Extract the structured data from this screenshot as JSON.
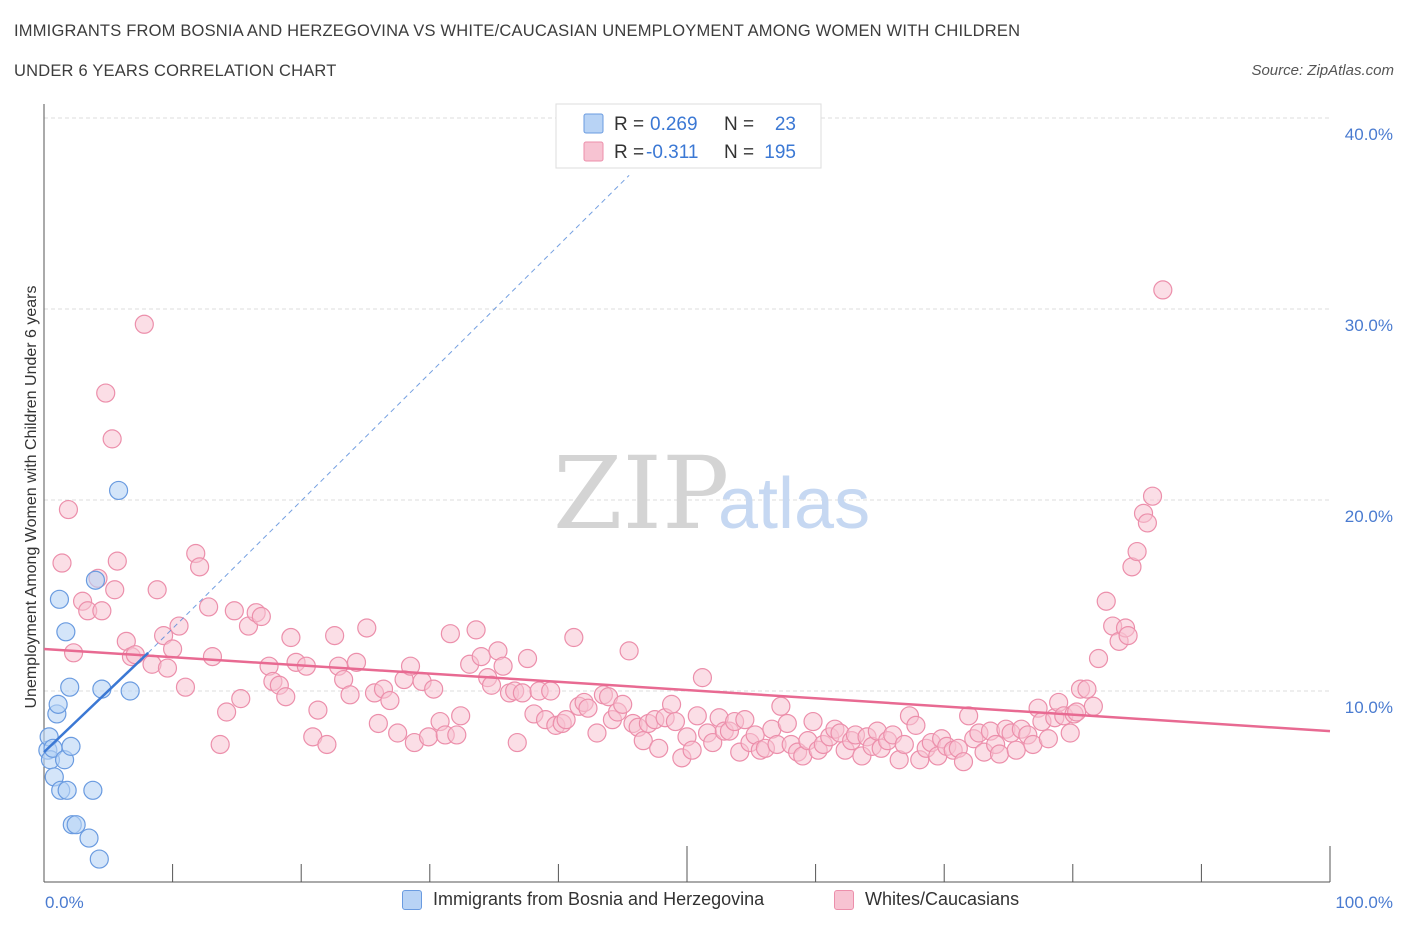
{
  "header": {
    "title_line1": "IMMIGRANTS FROM BOSNIA AND HERZEGOVINA VS WHITE/CAUCASIAN UNEMPLOYMENT AMONG WOMEN WITH CHILDREN",
    "title_line2": "UNDER 6 YEARS CORRELATION CHART",
    "source": "Source: ZipAtlas.com"
  },
  "watermark": {
    "part1": "ZIP",
    "part2": "atlas"
  },
  "stats": {
    "r_label": "R =",
    "n_label": "N =",
    "rows": [
      {
        "series": "Immigrants from Bosnia and Herzegovina",
        "r": "0.269",
        "n": "23"
      },
      {
        "series": "Whites/Caucasians",
        "r": "-0.311",
        "n": "195"
      }
    ]
  },
  "legend": {
    "items": [
      {
        "label": "Immigrants from Bosnia and Herzegovina"
      },
      {
        "label": "Whites/Caucasians"
      }
    ]
  },
  "colors": {
    "blue_fill": "#b8d3f5",
    "blue_stroke": "#6a9be0",
    "blue_line": "#3b78d4",
    "pink_fill": "#f7c3d2",
    "pink_stroke": "#ec8fab",
    "pink_line": "#e86a92",
    "grid": "#dddddd",
    "tick_text": "#4a7bd0"
  },
  "chart_data": {
    "type": "scatter",
    "title": "IMMIGRANTS FROM BOSNIA AND HERZEGOVINA VS WHITE/CAUCASIAN UNEMPLOYMENT AMONG WOMEN WITH CHILDREN UNDER 6 YEARS CORRELATION CHART",
    "xlabel": "",
    "ylabel": "Unemployment Among Women with Children Under 6 years",
    "xlim": [
      0,
      100
    ],
    "ylim": [
      0,
      40
    ],
    "x_tick_labels": [
      "0.0%",
      "100.0%"
    ],
    "y_ticks": [
      10,
      20,
      30,
      40
    ],
    "y_tick_labels": [
      "10.0%",
      "20.0%",
      "30.0%",
      "40.0%"
    ],
    "grid": true,
    "legend_position": "bottom",
    "series": [
      {
        "name": "Immigrants from Bosnia and Herzegovina",
        "color": "#b8d3f5",
        "trend": {
          "x": [
            0,
            8.1
          ],
          "y": [
            6.8,
            12.0
          ],
          "dashed_extension_to": [
            45.5,
            37.0
          ]
        },
        "points": [
          [
            0.3,
            6.9
          ],
          [
            0.4,
            7.6
          ],
          [
            0.5,
            6.4
          ],
          [
            0.7,
            7.0
          ],
          [
            0.8,
            5.5
          ],
          [
            1.0,
            8.8
          ],
          [
            1.1,
            9.3
          ],
          [
            1.2,
            14.8
          ],
          [
            1.3,
            4.8
          ],
          [
            1.6,
            6.4
          ],
          [
            1.7,
            13.1
          ],
          [
            1.8,
            4.8
          ],
          [
            2.0,
            10.2
          ],
          [
            2.1,
            7.1
          ],
          [
            2.2,
            3.0
          ],
          [
            2.5,
            3.0
          ],
          [
            3.5,
            2.3
          ],
          [
            3.8,
            4.8
          ],
          [
            4.0,
            15.8
          ],
          [
            4.3,
            1.2
          ],
          [
            4.5,
            10.1
          ],
          [
            5.8,
            20.5
          ],
          [
            6.7,
            10.0
          ]
        ]
      },
      {
        "name": "Whites/Caucasians",
        "color": "#f7c3d2",
        "trend": {
          "x": [
            0,
            100
          ],
          "y": [
            12.2,
            7.9
          ]
        },
        "points": [
          [
            1.4,
            16.7
          ],
          [
            1.9,
            19.5
          ],
          [
            2.3,
            12.0
          ],
          [
            3.0,
            14.7
          ],
          [
            3.4,
            14.2
          ],
          [
            4.2,
            15.9
          ],
          [
            4.5,
            14.2
          ],
          [
            4.8,
            25.6
          ],
          [
            5.3,
            23.2
          ],
          [
            5.5,
            15.3
          ],
          [
            5.7,
            16.8
          ],
          [
            6.4,
            12.6
          ],
          [
            6.8,
            11.8
          ],
          [
            7.1,
            11.9
          ],
          [
            7.8,
            29.2
          ],
          [
            8.4,
            11.4
          ],
          [
            8.8,
            15.3
          ],
          [
            9.3,
            12.9
          ],
          [
            9.6,
            11.2
          ],
          [
            10.0,
            12.2
          ],
          [
            10.5,
            13.4
          ],
          [
            11.0,
            10.2
          ],
          [
            11.8,
            17.2
          ],
          [
            12.1,
            16.5
          ],
          [
            12.8,
            14.4
          ],
          [
            13.1,
            11.8
          ],
          [
            13.7,
            7.2
          ],
          [
            14.2,
            8.9
          ],
          [
            14.8,
            14.2
          ],
          [
            15.3,
            9.6
          ],
          [
            15.9,
            13.4
          ],
          [
            16.5,
            14.1
          ],
          [
            16.9,
            13.9
          ],
          [
            17.5,
            11.3
          ],
          [
            17.8,
            10.5
          ],
          [
            18.3,
            10.3
          ],
          [
            18.8,
            9.7
          ],
          [
            19.2,
            12.8
          ],
          [
            19.6,
            11.5
          ],
          [
            20.4,
            11.3
          ],
          [
            20.9,
            7.6
          ],
          [
            21.3,
            9.0
          ],
          [
            22.0,
            7.2
          ],
          [
            22.6,
            12.9
          ],
          [
            22.9,
            11.3
          ],
          [
            23.3,
            10.6
          ],
          [
            23.8,
            9.8
          ],
          [
            24.3,
            11.5
          ],
          [
            25.1,
            13.3
          ],
          [
            25.7,
            9.9
          ],
          [
            26.0,
            8.3
          ],
          [
            26.4,
            10.1
          ],
          [
            26.9,
            9.5
          ],
          [
            27.5,
            7.8
          ],
          [
            28.0,
            10.6
          ],
          [
            28.5,
            11.3
          ],
          [
            28.8,
            7.3
          ],
          [
            29.4,
            10.5
          ],
          [
            29.9,
            7.6
          ],
          [
            30.3,
            10.1
          ],
          [
            30.8,
            8.4
          ],
          [
            31.2,
            7.7
          ],
          [
            31.6,
            13.0
          ],
          [
            32.1,
            7.7
          ],
          [
            32.4,
            8.7
          ],
          [
            33.1,
            11.4
          ],
          [
            33.6,
            13.2
          ],
          [
            34.0,
            11.8
          ],
          [
            34.5,
            10.7
          ],
          [
            34.8,
            10.3
          ],
          [
            35.3,
            12.1
          ],
          [
            35.7,
            11.3
          ],
          [
            36.2,
            9.9
          ],
          [
            36.6,
            10.0
          ],
          [
            36.8,
            7.3
          ],
          [
            37.2,
            9.9
          ],
          [
            37.6,
            11.7
          ],
          [
            38.1,
            8.8
          ],
          [
            38.5,
            10.0
          ],
          [
            39.0,
            8.5
          ],
          [
            39.4,
            10.0
          ],
          [
            39.8,
            8.2
          ],
          [
            40.3,
            8.3
          ],
          [
            40.6,
            8.5
          ],
          [
            41.2,
            12.8
          ],
          [
            41.6,
            9.2
          ],
          [
            42.0,
            9.4
          ],
          [
            42.3,
            9.1
          ],
          [
            43.0,
            7.8
          ],
          [
            43.5,
            9.8
          ],
          [
            43.9,
            9.7
          ],
          [
            44.2,
            8.5
          ],
          [
            44.6,
            8.9
          ],
          [
            45.0,
            9.3
          ],
          [
            45.5,
            12.1
          ],
          [
            45.8,
            8.3
          ],
          [
            46.2,
            8.1
          ],
          [
            46.6,
            7.4
          ],
          [
            47.0,
            8.3
          ],
          [
            47.5,
            8.5
          ],
          [
            47.8,
            7.0
          ],
          [
            48.3,
            8.6
          ],
          [
            48.8,
            9.3
          ],
          [
            49.1,
            8.4
          ],
          [
            49.6,
            6.5
          ],
          [
            50.0,
            7.6
          ],
          [
            50.4,
            6.9
          ],
          [
            50.8,
            8.7
          ],
          [
            51.2,
            10.7
          ],
          [
            51.6,
            7.8
          ],
          [
            52.0,
            7.3
          ],
          [
            52.5,
            8.6
          ],
          [
            52.9,
            7.9
          ],
          [
            53.3,
            7.9
          ],
          [
            53.7,
            8.4
          ],
          [
            54.1,
            6.8
          ],
          [
            54.5,
            8.5
          ],
          [
            54.9,
            7.3
          ],
          [
            55.3,
            7.7
          ],
          [
            55.7,
            6.9
          ],
          [
            56.1,
            7.0
          ],
          [
            56.6,
            8.0
          ],
          [
            57.0,
            7.2
          ],
          [
            57.3,
            9.2
          ],
          [
            57.8,
            8.3
          ],
          [
            58.1,
            7.2
          ],
          [
            58.6,
            6.8
          ],
          [
            59.0,
            6.6
          ],
          [
            59.4,
            7.4
          ],
          [
            59.8,
            8.4
          ],
          [
            60.2,
            6.9
          ],
          [
            60.6,
            7.2
          ],
          [
            61.1,
            7.6
          ],
          [
            61.5,
            8.0
          ],
          [
            61.9,
            7.8
          ],
          [
            62.3,
            6.9
          ],
          [
            62.8,
            7.4
          ],
          [
            63.1,
            7.7
          ],
          [
            63.6,
            6.6
          ],
          [
            64.0,
            7.6
          ],
          [
            64.4,
            7.1
          ],
          [
            64.8,
            7.9
          ],
          [
            65.1,
            7.0
          ],
          [
            65.6,
            7.4
          ],
          [
            66.0,
            7.7
          ],
          [
            66.5,
            6.4
          ],
          [
            66.9,
            7.2
          ],
          [
            67.3,
            8.7
          ],
          [
            67.8,
            8.2
          ],
          [
            68.1,
            6.4
          ],
          [
            68.6,
            7.0
          ],
          [
            69.0,
            7.3
          ],
          [
            69.5,
            6.6
          ],
          [
            69.8,
            7.5
          ],
          [
            70.2,
            7.1
          ],
          [
            70.7,
            6.9
          ],
          [
            71.1,
            7.0
          ],
          [
            71.5,
            6.3
          ],
          [
            71.9,
            8.7
          ],
          [
            72.3,
            7.5
          ],
          [
            72.7,
            7.8
          ],
          [
            73.1,
            6.8
          ],
          [
            73.6,
            7.9
          ],
          [
            74.0,
            7.2
          ],
          [
            74.3,
            6.7
          ],
          [
            74.8,
            8.0
          ],
          [
            75.2,
            7.8
          ],
          [
            75.6,
            6.9
          ],
          [
            76.0,
            8.0
          ],
          [
            76.5,
            7.7
          ],
          [
            76.9,
            7.2
          ],
          [
            77.3,
            9.1
          ],
          [
            77.6,
            8.4
          ],
          [
            78.1,
            7.5
          ],
          [
            78.6,
            8.6
          ],
          [
            78.9,
            9.4
          ],
          [
            79.3,
            8.7
          ],
          [
            79.8,
            7.8
          ],
          [
            80.1,
            8.8
          ],
          [
            80.6,
            10.1
          ],
          [
            81.1,
            10.1
          ],
          [
            81.6,
            9.2
          ],
          [
            82.0,
            11.7
          ],
          [
            82.6,
            14.7
          ],
          [
            83.1,
            13.4
          ],
          [
            83.6,
            12.6
          ],
          [
            84.1,
            13.3
          ],
          [
            84.6,
            16.5
          ],
          [
            85.0,
            17.3
          ],
          [
            85.5,
            19.3
          ],
          [
            85.8,
            18.8
          ],
          [
            86.2,
            20.2
          ],
          [
            87.0,
            31.0
          ],
          [
            84.3,
            12.9
          ],
          [
            80.3,
            8.9
          ]
        ]
      }
    ]
  }
}
